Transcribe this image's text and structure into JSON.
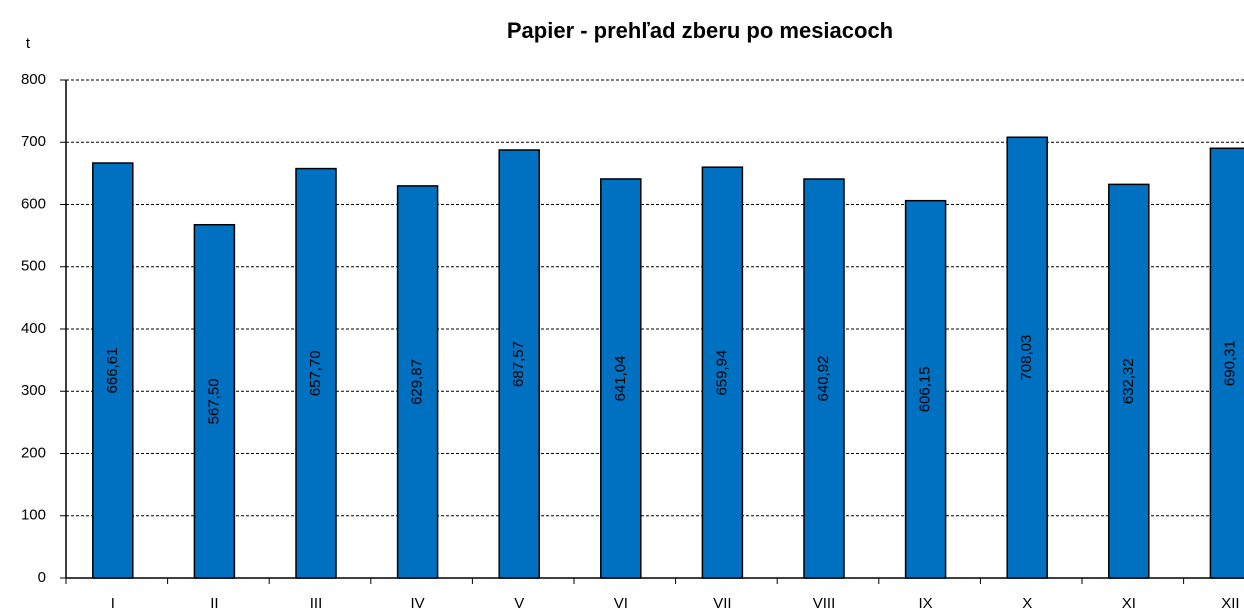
{
  "chart_data": {
    "type": "bar",
    "title": "Papier - prehľad zberu po mesiacoch",
    "y_label": "t",
    "categories": [
      "I",
      "II",
      "III",
      "IV",
      "V",
      "VI",
      "VII",
      "VIII",
      "IX",
      "X",
      "XI",
      "XII"
    ],
    "values": [
      666.61,
      567.5,
      657.7,
      629.87,
      687.57,
      641.04,
      659.94,
      640.92,
      606.15,
      708.03,
      632.32,
      690.31
    ],
    "value_labels": [
      "666,61",
      "567,50",
      "657,70",
      "629,87",
      "687,57",
      "641,04",
      "659,94",
      "640,92",
      "606,15",
      "708,03",
      "632,32",
      "690,31"
    ],
    "color": "#0070c0",
    "ylim": [
      0,
      800
    ],
    "yticks": [
      0,
      100,
      200,
      300,
      400,
      500,
      600,
      700,
      800
    ],
    "grid": true
  }
}
